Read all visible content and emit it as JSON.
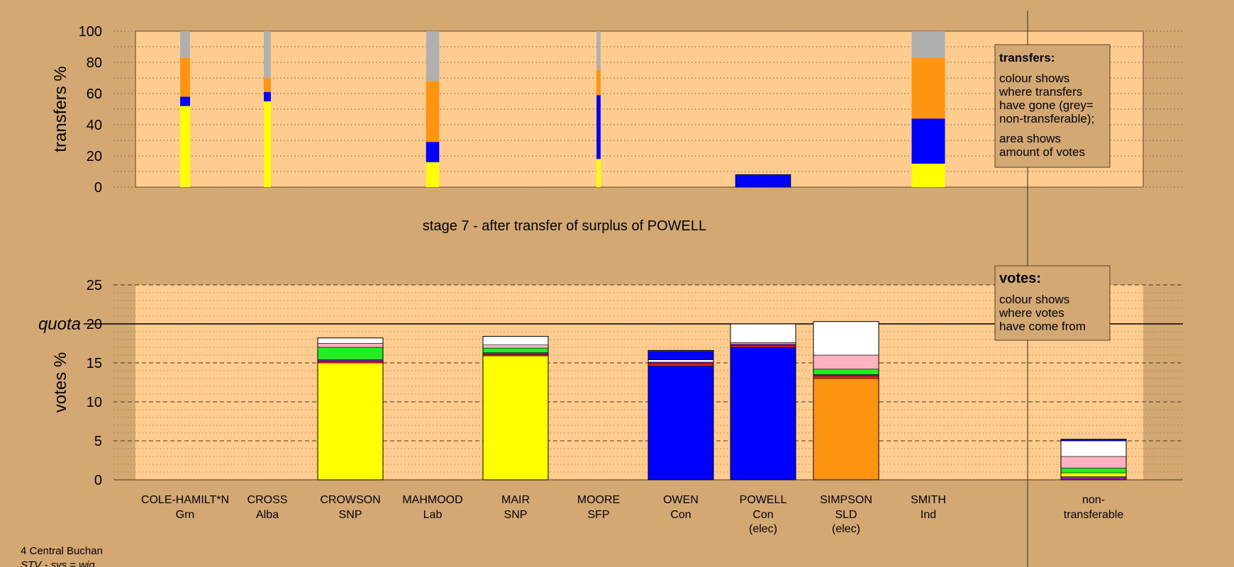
{
  "colors": {
    "background": "#d4a872",
    "plot_bg": "#ffcc8f",
    "sidebar_bg": "#d4a872",
    "SNP": "#ffff00",
    "Con": "#0000ff",
    "SLD": "#ff9410",
    "Lab": "#ff2020",
    "Grn": "#22ee22",
    "Alba": "#8822aa",
    "SFP": "#ffb3c0",
    "Ind": "#ffffff",
    "nontransferable": "#b0b0b0"
  },
  "transfers_chart": {
    "ylabel": "transfers %",
    "yticks": [
      "0",
      "20",
      "40",
      "60",
      "80",
      "100"
    ],
    "ylim": [
      0,
      100
    ],
    "note_title": "transfers:",
    "note_lines_1": [
      "colour shows",
      "where transfers",
      "have gone (grey=",
      "non-transferable);"
    ],
    "note_lines_2": [
      "area shows",
      "amount of votes"
    ]
  },
  "stage_title": "stage 7 - after transfer of surplus of POWELL",
  "votes_chart": {
    "ylabel": "votes %",
    "quota_label": "quota",
    "quota_value": 20,
    "yticks": [
      "0",
      "5",
      "10",
      "15",
      "20",
      "25"
    ],
    "ylim": [
      0,
      25
    ],
    "note_title": "votes:",
    "note_lines": [
      "colour shows",
      "where votes",
      "have come from"
    ]
  },
  "candidates": [
    {
      "name": "COLE-HAMILT*N",
      "party": "Grn",
      "status": ""
    },
    {
      "name": "CROSS",
      "party": "Alba",
      "status": ""
    },
    {
      "name": "CROWSON",
      "party": "SNP",
      "status": ""
    },
    {
      "name": "MAHMOOD",
      "party": "Lab",
      "status": ""
    },
    {
      "name": "MAIR",
      "party": "SNP",
      "status": ""
    },
    {
      "name": "MOORE",
      "party": "SFP",
      "status": ""
    },
    {
      "name": "OWEN",
      "party": "Con",
      "status": ""
    },
    {
      "name": "POWELL",
      "party": "Con",
      "status": "(elec)"
    },
    {
      "name": "SIMPSON",
      "party": "SLD",
      "status": "(elec)"
    },
    {
      "name": "SMITH",
      "party": "Ind",
      "status": ""
    }
  ],
  "nontransferable_label": [
    "non-",
    "transferable"
  ],
  "footer": {
    "ward": "4 Central Buchan",
    "system": "STV - sys = wig"
  },
  "chart_data": [
    {
      "type": "bar",
      "title": "",
      "ylabel": "transfers %",
      "ylim": [
        0,
        100
      ],
      "categories": [
        "COLE-HAMILT*N",
        "CROSS",
        "CROWSON",
        "MAHMOOD",
        "MAIR",
        "MOORE",
        "OWEN",
        "POWELL",
        "SIMPSON",
        "SMITH"
      ],
      "bars": [
        {
          "candidate": "COLE-HAMILT*N",
          "width_share": 0.24,
          "segments": [
            {
              "party": "SNP",
              "value": 52
            },
            {
              "party": "Con",
              "value": 6
            },
            {
              "party": "SLD",
              "value": 25
            },
            {
              "party": "nontransferable",
              "value": 17
            }
          ]
        },
        {
          "candidate": "CROSS",
          "width_share": 0.17,
          "segments": [
            {
              "party": "SNP",
              "value": 55
            },
            {
              "party": "Con",
              "value": 6
            },
            {
              "party": "SLD",
              "value": 9
            },
            {
              "party": "nontransferable",
              "value": 30
            }
          ]
        },
        {
          "candidate": "MAHMOOD",
          "width_share": 0.32,
          "segments": [
            {
              "party": "SNP",
              "value": 16
            },
            {
              "party": "Con",
              "value": 13
            },
            {
              "party": "SLD",
              "value": 39
            },
            {
              "party": "nontransferable",
              "value": 32
            }
          ]
        },
        {
          "candidate": "MOORE",
          "width_share": 0.1,
          "segments": [
            {
              "party": "SNP",
              "value": 18
            },
            {
              "party": "Con",
              "value": 41
            },
            {
              "party": "SLD",
              "value": 16
            },
            {
              "party": "nontransferable",
              "value": 25
            }
          ]
        },
        {
          "candidate": "POWELL",
          "width_share": 1.34,
          "segments": [
            {
              "party": "Con",
              "value": 8
            }
          ]
        },
        {
          "candidate": "SMITH",
          "width_share": 0.81,
          "segments": [
            {
              "party": "SNP",
              "value": 15
            },
            {
              "party": "Con",
              "value": 29
            },
            {
              "party": "SLD",
              "value": 39
            },
            {
              "party": "nontransferable",
              "value": 17
            }
          ]
        }
      ]
    },
    {
      "type": "bar",
      "title": "stage 7 - after transfer of surplus of POWELL",
      "ylabel": "votes %",
      "ylim": [
        0,
        25
      ],
      "quota": 20,
      "categories": [
        "COLE-HAMILT*N",
        "CROSS",
        "CROWSON",
        "MAHMOOD",
        "MAIR",
        "MOORE",
        "OWEN",
        "POWELL",
        "SIMPSON",
        "SMITH",
        "non-transferable"
      ],
      "bars": [
        {
          "candidate": "CROWSON",
          "segments": [
            {
              "party": "SNP",
              "value": 15.0
            },
            {
              "party": "Lab",
              "value": 0.2
            },
            {
              "party": "Alba",
              "value": 0.2
            },
            {
              "party": "Grn",
              "value": 1.6
            },
            {
              "party": "SFP",
              "value": 0.5
            },
            {
              "party": "Ind",
              "value": 0.7
            }
          ]
        },
        {
          "candidate": "MAIR",
          "segments": [
            {
              "party": "SNP",
              "value": 15.9
            },
            {
              "party": "Lab",
              "value": 0.2
            },
            {
              "party": "Alba",
              "value": 0.2
            },
            {
              "party": "Grn",
              "value": 0.6
            },
            {
              "party": "SFP",
              "value": 0.4
            },
            {
              "party": "Ind",
              "value": 1.1
            }
          ]
        },
        {
          "candidate": "OWEN",
          "segments": [
            {
              "party": "Con",
              "value": 14.6
            },
            {
              "party": "Lab",
              "value": 0.3
            },
            {
              "party": "Alba",
              "value": 0.2
            },
            {
              "party": "Ind",
              "value": 0.3
            },
            {
              "party": "Con",
              "value": 1.1
            },
            {
              "party": "Ind",
              "value": 0.1
            }
          ]
        },
        {
          "candidate": "POWELL",
          "segments": [
            {
              "party": "Con",
              "value": 17.0
            },
            {
              "party": "Lab",
              "value": 0.2
            },
            {
              "party": "Alba",
              "value": 0.2
            },
            {
              "party": "SFP",
              "value": 0.2
            },
            {
              "party": "Ind",
              "value": 2.4
            }
          ]
        },
        {
          "candidate": "SIMPSON",
          "segments": [
            {
              "party": "SLD",
              "value": 13.0
            },
            {
              "party": "Lab",
              "value": 0.3
            },
            {
              "party": "Alba",
              "value": 0.2
            },
            {
              "party": "Grn",
              "value": 0.7
            },
            {
              "party": "SFP",
              "value": 1.8
            },
            {
              "party": "Ind",
              "value": 4.3
            }
          ]
        },
        {
          "candidate": "non-transferable",
          "segments": [
            {
              "party": "Alba",
              "value": 0.4
            },
            {
              "party": "SNP",
              "value": 0.5
            },
            {
              "party": "Grn",
              "value": 0.6
            },
            {
              "party": "SFP",
              "value": 1.5
            },
            {
              "party": "Ind",
              "value": 2.0
            },
            {
              "party": "Con",
              "value": 0.2
            }
          ]
        }
      ]
    }
  ]
}
